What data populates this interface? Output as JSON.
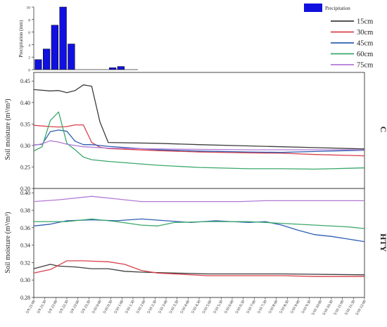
{
  "precip_legend": "Precipitation",
  "legend": [
    {
      "label": "15cm",
      "color": "#3d3d3d"
    },
    {
      "label": "30cm",
      "color": "#d9414a"
    },
    {
      "label": "45cm",
      "color": "#2f5fb3"
    },
    {
      "label": "60cm",
      "color": "#3aa86a"
    },
    {
      "label": "75cm",
      "color": "#b27ad6"
    }
  ],
  "chart_data": [
    {
      "type": "bar",
      "ylabel": "Precipitation (mm)",
      "ylim": [
        0,
        10
      ],
      "yticks": [
        0,
        2,
        4,
        6,
        8,
        10
      ],
      "color": "#1010e0",
      "x": [
        0,
        1,
        2,
        3,
        4,
        9,
        10
      ],
      "values": [
        1.6,
        3.3,
        7.1,
        10,
        4.1,
        0.3,
        0.5
      ]
    },
    {
      "type": "line",
      "panel": "C",
      "ylabel": "Soil moisture (m³/m³)",
      "ylim": [
        0.2,
        0.47
      ],
      "yticks": [
        0.2,
        0.25,
        0.3,
        0.35,
        0.4,
        0.45
      ],
      "series": [
        {
          "name": "15cm",
          "color": "#3d3d3d",
          "points": [
            [
              0,
              0.43
            ],
            [
              2,
              0.427
            ],
            [
              3,
              0.428
            ],
            [
              4,
              0.423
            ],
            [
              5,
              0.428
            ],
            [
              6,
              0.441
            ],
            [
              7,
              0.438
            ],
            [
              8,
              0.355
            ],
            [
              9,
              0.307
            ],
            [
              15,
              0.305
            ],
            [
              20,
              0.302
            ],
            [
              26,
              0.299
            ],
            [
              30,
              0.297
            ],
            [
              34,
              0.295
            ],
            [
              40,
              0.292
            ]
          ]
        },
        {
          "name": "30cm",
          "color": "#d9414a",
          "points": [
            [
              0,
              0.347
            ],
            [
              2,
              0.344
            ],
            [
              3,
              0.343
            ],
            [
              4,
              0.344
            ],
            [
              5,
              0.348
            ],
            [
              6,
              0.348
            ],
            [
              7,
              0.307
            ],
            [
              8,
              0.296
            ],
            [
              9,
              0.293
            ],
            [
              15,
              0.288
            ],
            [
              20,
              0.285
            ],
            [
              26,
              0.283
            ],
            [
              30,
              0.282
            ],
            [
              34,
              0.279
            ],
            [
              40,
              0.276
            ]
          ]
        },
        {
          "name": "45cm",
          "color": "#2f5fb3",
          "points": [
            [
              0,
              0.301
            ],
            [
              1,
              0.303
            ],
            [
              2,
              0.332
            ],
            [
              3,
              0.336
            ],
            [
              4,
              0.333
            ],
            [
              5,
              0.31
            ],
            [
              6,
              0.302
            ],
            [
              7,
              0.302
            ],
            [
              8,
              0.3
            ],
            [
              9,
              0.298
            ],
            [
              15,
              0.29
            ],
            [
              20,
              0.287
            ],
            [
              26,
              0.285
            ],
            [
              30,
              0.284
            ],
            [
              34,
              0.286
            ],
            [
              40,
              0.289
            ]
          ]
        },
        {
          "name": "60cm",
          "color": "#3aa86a",
          "points": [
            [
              0,
              0.287
            ],
            [
              1,
              0.297
            ],
            [
              2,
              0.358
            ],
            [
              3,
              0.378
            ],
            [
              4,
              0.305
            ],
            [
              5,
              0.29
            ],
            [
              6,
              0.273
            ],
            [
              7,
              0.267
            ],
            [
              9,
              0.263
            ],
            [
              15,
              0.254
            ],
            [
              20,
              0.249
            ],
            [
              26,
              0.246
            ],
            [
              30,
              0.246
            ],
            [
              34,
              0.245
            ],
            [
              40,
              0.248
            ]
          ]
        },
        {
          "name": "75cm",
          "color": "#b27ad6",
          "points": [
            [
              0,
              0.3
            ],
            [
              1,
              0.304
            ],
            [
              2,
              0.311
            ],
            [
              3,
              0.308
            ],
            [
              4,
              0.303
            ],
            [
              5,
              0.3
            ],
            [
              6,
              0.297
            ],
            [
              7,
              0.296
            ],
            [
              9,
              0.294
            ],
            [
              15,
              0.292
            ],
            [
              20,
              0.291
            ],
            [
              26,
              0.29
            ],
            [
              30,
              0.29
            ],
            [
              34,
              0.29
            ],
            [
              40,
              0.29
            ]
          ]
        }
      ]
    },
    {
      "type": "line",
      "panel": "HTY",
      "ylabel": "Soil moisture (m³/m³)",
      "ylim": [
        0.28,
        0.405
      ],
      "yticks": [
        0.28,
        0.3,
        0.32,
        0.34,
        0.36,
        0.38,
        0.4
      ],
      "x_ticklabels": [
        "5/9 21:00",
        "5/9 21:30",
        "5/9 22:00",
        "5/9 22:30",
        "5/9 23:00",
        "5/9 23:30",
        "5/10 0:00",
        "5/10 0:30",
        "5/10 1:00",
        "5/10 1:30",
        "5/10 2:00",
        "5/10 2:30",
        "5/10 3:00",
        "5/10 3:30",
        "5/10 4:00",
        "5/10 4:30",
        "5/10 5:00",
        "5/10 5:30",
        "5/10 6:00",
        "5/10 6:30",
        "5/10 7:00",
        "5/10 7:30",
        "5/10 8:00",
        "5/10 8:30",
        "5/10 9:00",
        "5/10 9:30",
        "5/10 10:00",
        "5/10 10:30",
        "5/10 11:00",
        "5/10 11:30",
        "5/10 12:00"
      ],
      "series": [
        {
          "name": "15cm",
          "color": "#3d3d3d",
          "points": [
            [
              0,
              0.313
            ],
            [
              2,
              0.318
            ],
            [
              3,
              0.316
            ],
            [
              5,
              0.315
            ],
            [
              7,
              0.313
            ],
            [
              9,
              0.313
            ],
            [
              11,
              0.31
            ],
            [
              13,
              0.309
            ],
            [
              17,
              0.308
            ],
            [
              21,
              0.307
            ],
            [
              30,
              0.307
            ],
            [
              40,
              0.306
            ]
          ]
        },
        {
          "name": "30cm",
          "color": "#d9414a",
          "points": [
            [
              0,
              0.308
            ],
            [
              2,
              0.312
            ],
            [
              4,
              0.322
            ],
            [
              6,
              0.322
            ],
            [
              9,
              0.321
            ],
            [
              11,
              0.318
            ],
            [
              13,
              0.311
            ],
            [
              15,
              0.308
            ],
            [
              21,
              0.305
            ],
            [
              30,
              0.305
            ],
            [
              34,
              0.304
            ],
            [
              40,
              0.304
            ]
          ]
        },
        {
          "name": "45cm",
          "color": "#2f5fb3",
          "points": [
            [
              0,
              0.362
            ],
            [
              2,
              0.364
            ],
            [
              4,
              0.368
            ],
            [
              7,
              0.369
            ],
            [
              10,
              0.368
            ],
            [
              13,
              0.37
            ],
            [
              16,
              0.368
            ],
            [
              19,
              0.366
            ],
            [
              22,
              0.368
            ],
            [
              26,
              0.366
            ],
            [
              28,
              0.367
            ],
            [
              30,
              0.363
            ],
            [
              32,
              0.357
            ],
            [
              34,
              0.352
            ],
            [
              36,
              0.35
            ],
            [
              38,
              0.347
            ],
            [
              40,
              0.344
            ]
          ]
        },
        {
          "name": "60cm",
          "color": "#3aa86a",
          "points": [
            [
              0,
              0.367
            ],
            [
              4,
              0.367
            ],
            [
              7,
              0.37
            ],
            [
              10,
              0.367
            ],
            [
              13,
              0.363
            ],
            [
              15,
              0.362
            ],
            [
              17,
              0.366
            ],
            [
              21,
              0.367
            ],
            [
              26,
              0.367
            ],
            [
              30,
              0.365
            ],
            [
              34,
              0.363
            ],
            [
              38,
              0.361
            ],
            [
              40,
              0.359
            ]
          ]
        },
        {
          "name": "75cm",
          "color": "#b27ad6",
          "points": [
            [
              0,
              0.39
            ],
            [
              3,
              0.392
            ],
            [
              7,
              0.396
            ],
            [
              10,
              0.393
            ],
            [
              13,
              0.39
            ],
            [
              20,
              0.39
            ],
            [
              25,
              0.39
            ],
            [
              28,
              0.391
            ],
            [
              31,
              0.391
            ],
            [
              34,
              0.391
            ],
            [
              40,
              0.391
            ]
          ]
        }
      ]
    }
  ]
}
